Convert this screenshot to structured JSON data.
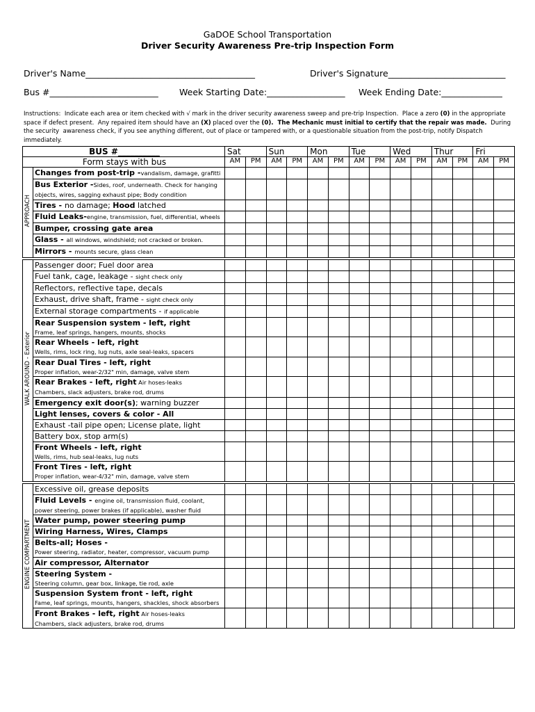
{
  "header": {
    "title": "GaDOE School Transportation",
    "subtitle": "Driver Security Awareness Pre-trip Inspection Form"
  },
  "fields": {
    "driver_name": "Driver's Name_______________________________________",
    "driver_signature": "Driver's Signature___________________________",
    "bus": "Bus #_________________________",
    "week_start": "Week Starting Date:__________________",
    "week_end": "Week Ending Date:______________"
  },
  "instructions": [
    {
      "text": "Instructions:  Indicate each area or item checked with √ mark in the driver security awareness sweep and pre-trip Inspection.  Place a zero ",
      "style": "normal"
    },
    {
      "text": "(0)",
      "style": "bold"
    },
    {
      "text": " in the appropriate space if defect present.  Any repaired item should have an ",
      "style": "normal"
    },
    {
      "text": "(X)",
      "style": "bold"
    },
    {
      "text": " placed over the ",
      "style": "normal"
    },
    {
      "text": "(0).  The Mechanic must initial to certify that the repair was made.",
      "style": "bold"
    },
    {
      "text": "  During the security  awareness check, if you see anything different, out of place or tampered with, or a questionable situation from the post-trip, notify Dispatch immediately.",
      "style": "normal"
    }
  ],
  "table": {
    "bus_label": "BUS #__________",
    "note": "Form stays with bus",
    "days": [
      "Sat",
      "Sun",
      "Mon",
      "Tue",
      "Wed",
      "Thur",
      "Fri"
    ],
    "shifts": [
      "AM",
      "PM"
    ],
    "sections": [
      {
        "label": "APPROACH",
        "items": [
          {
            "line": [
              {
                "text": "Changes from post-trip -",
                "style": "bold"
              },
              {
                "text": "vandalism, damage, grafitti",
                "style": "small"
              }
            ]
          },
          {
            "line": [
              {
                "text": "Bus Exterior -",
                "style": "bold"
              },
              {
                "text": "Sides, roof, underneath. Check for hanging",
                "style": "small"
              }
            ],
            "sub": "objects, wires, sagging exhaust pipe;  Body condition"
          },
          {
            "line": [
              {
                "text": "Tires - ",
                "style": "bold"
              },
              {
                "text": "no damage;  ",
                "style": "normal"
              },
              {
                "text": "Hood",
                "style": "bold"
              },
              {
                "text": " latched",
                "style": "normal"
              }
            ]
          },
          {
            "line": [
              {
                "text": "Fluid Leaks-",
                "style": "bold"
              },
              {
                "text": "engine, transmission, fuel, differential, wheels",
                "style": "small"
              }
            ]
          },
          {
            "line": [
              {
                "text": "Bumper, crossing gate area",
                "style": "bold"
              }
            ]
          },
          {
            "line": [
              {
                "text": "Glass - ",
                "style": "bold"
              },
              {
                "text": "all windows, windshield;  not cracked or broken.",
                "style": "small"
              }
            ]
          },
          {
            "line": [
              {
                "text": "Mirrors - ",
                "style": "bold"
              },
              {
                "text": "mounts secure, glass clean",
                "style": "small"
              }
            ]
          }
        ]
      },
      {
        "label": "WALK AROUND - Exterior",
        "items": [
          {
            "line": [
              {
                "text": "Passenger door; Fuel door area",
                "style": "normal"
              }
            ]
          },
          {
            "line": [
              {
                "text": "Fuel tank, cage, leakage - ",
                "style": "normal"
              },
              {
                "text": "sight check only",
                "style": "small"
              }
            ]
          },
          {
            "line": [
              {
                "text": "Reflectors, reflective tape, decals",
                "style": "normal"
              }
            ]
          },
          {
            "line": [
              {
                "text": "Exhaust, drive shaft, frame - ",
                "style": "normal"
              },
              {
                "text": "sight check only",
                "style": "small"
              }
            ]
          },
          {
            "line": [
              {
                "text": "External storage compartments - ",
                "style": "normal"
              },
              {
                "text": "if applicable",
                "style": "small"
              }
            ]
          },
          {
            "line": [
              {
                "text": "Rear Suspension system - left, right",
                "style": "bold"
              }
            ],
            "sub": "Frame, leaf springs, hangers, mounts, shocks"
          },
          {
            "line": [
              {
                "text": "Rear Wheels - left, right",
                "style": "bold"
              }
            ],
            "sub": "Wells, rims, lock ring, lug nuts, axle seal-leaks, spacers"
          },
          {
            "line": [
              {
                "text": "Rear Dual Tires - left, right",
                "style": "bold"
              }
            ],
            "sub": "Proper inflation, wear-2/32\" min, damage, valve stem"
          },
          {
            "line": [
              {
                "text": "Rear Brakes - left, right",
                "style": "bold"
              },
              {
                "text": "  Air hoses-leaks",
                "style": "small"
              }
            ],
            "sub": "Chambers, slack adjusters, brake rod, drums"
          },
          {
            "line": [
              {
                "text": "Emergency exit door(s)",
                "style": "bold"
              },
              {
                "text": "; warning buzzer",
                "style": "normal"
              }
            ]
          },
          {
            "line": [
              {
                "text": "Light lenses, covers & color - All",
                "style": "bold"
              }
            ]
          },
          {
            "line": [
              {
                "text": "Exhaust -tail pipe open; License plate, light",
                "style": "normal"
              }
            ]
          },
          {
            "line": [
              {
                "text": "Battery box, stop arm(s)",
                "style": "normal"
              }
            ]
          },
          {
            "line": [
              {
                "text": "Front Wheels - left, right",
                "style": "bold"
              }
            ],
            "sub": "Wells, rims, hub seal-leaks,  lug nuts"
          },
          {
            "line": [
              {
                "text": "Front Tires - left, right",
                "style": "bold"
              }
            ],
            "sub": "Proper inflation,  wear-4/32\" min, damage,  valve stem"
          }
        ]
      },
      {
        "label": "ENGINE  COMPARTMENT",
        "items": [
          {
            "line": [
              {
                "text": "Excessive oil, grease deposits",
                "style": "normal"
              }
            ]
          },
          {
            "line": [
              {
                "text": "Fluid Levels - ",
                "style": "bold"
              },
              {
                "text": "engine oil, transmission fluid, coolant,",
                "style": "small"
              }
            ],
            "sub": "power steering, power brakes (if applicable), washer fluid"
          },
          {
            "line": [
              {
                "text": "Water pump, power steering pump",
                "style": "bold"
              }
            ]
          },
          {
            "line": [
              {
                "text": "Wiring Harness, Wires, Clamps",
                "style": "bold"
              }
            ]
          },
          {
            "line": [
              {
                "text": "Belts-all;  Hoses -",
                "style": "bold"
              }
            ],
            "sub": "Power steering, radiator, heater, compressor, vacuum pump"
          },
          {
            "line": [
              {
                "text": "Air compressor, Alternator",
                "style": "bold"
              }
            ]
          },
          {
            "line": [
              {
                "text": "Steering System -",
                "style": "bold"
              }
            ],
            "sub": "Steering column, gear box, linkage, tie rod, axle"
          },
          {
            "line": [
              {
                "text": "Suspension System front - left, right",
                "style": "bold"
              }
            ],
            "sub": "Fame, leaf springs, mounts, hangers, shackles, shock absorbers"
          },
          {
            "line": [
              {
                "text": "Front Brakes - left, right",
                "style": "bold"
              },
              {
                "text": "    Air hoses-leaks",
                "style": "small"
              }
            ],
            "sub": "Chambers, slack adjusters, brake rod, drums"
          }
        ]
      }
    ]
  }
}
